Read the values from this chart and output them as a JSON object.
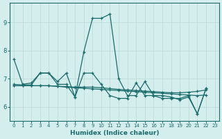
{
  "xlabel": "Humidex (Indice chaleur)",
  "bg_color": "#d4eeed",
  "line_color": "#1a6b6b",
  "grid_color": "#b8d8d6",
  "xlim": [
    -0.5,
    23.5
  ],
  "ylim": [
    5.5,
    9.7
  ],
  "yticks": [
    6,
    7,
    8,
    9
  ],
  "xticks": [
    0,
    1,
    2,
    3,
    4,
    5,
    6,
    7,
    8,
    9,
    10,
    11,
    12,
    13,
    14,
    15,
    16,
    17,
    18,
    19,
    20,
    21,
    22,
    23
  ],
  "series": [
    {
      "x": [
        0,
        1,
        2,
        3,
        4,
        5,
        6,
        7,
        8,
        9,
        10,
        11,
        12,
        13,
        14,
        15,
        16,
        17,
        18,
        19,
        20,
        21,
        22
      ],
      "y": [
        7.7,
        6.8,
        6.85,
        7.2,
        7.2,
        6.8,
        6.8,
        6.35,
        7.95,
        9.15,
        9.15,
        9.3,
        7.0,
        6.4,
        6.4,
        6.9,
        6.4,
        6.4,
        6.35,
        6.25,
        6.35,
        5.75,
        6.65
      ]
    },
    {
      "x": [
        0,
        1,
        2,
        3,
        4,
        5,
        6,
        7,
        8,
        9,
        10,
        11,
        12,
        13,
        14,
        15,
        16,
        17,
        18,
        19,
        20,
        21,
        22
      ],
      "y": [
        6.75,
        6.75,
        6.75,
        6.75,
        6.75,
        6.73,
        6.72,
        6.7,
        6.7,
        6.7,
        6.68,
        6.65,
        6.62,
        6.6,
        6.58,
        6.56,
        6.54,
        6.52,
        6.5,
        6.5,
        6.52,
        6.55,
        6.6
      ]
    },
    {
      "x": [
        0,
        1,
        2,
        3,
        4,
        5,
        6,
        7,
        8,
        9,
        10,
        11,
        12,
        13,
        14,
        15,
        16,
        17,
        18,
        19,
        20,
        21,
        22
      ],
      "y": [
        6.8,
        6.78,
        6.78,
        7.2,
        7.2,
        6.9,
        7.2,
        6.35,
        7.2,
        7.2,
        6.8,
        6.4,
        6.3,
        6.3,
        6.85,
        6.4,
        6.4,
        6.3,
        6.3,
        6.3,
        6.4,
        5.75,
        6.65
      ]
    },
    {
      "x": [
        0,
        1,
        2,
        3,
        4,
        5,
        6,
        7,
        8,
        9,
        10,
        11,
        12,
        13,
        14,
        15,
        16,
        17,
        18,
        19,
        20,
        21,
        22
      ],
      "y": [
        6.75,
        6.75,
        6.75,
        6.75,
        6.75,
        6.73,
        6.7,
        6.68,
        6.66,
        6.64,
        6.62,
        6.6,
        6.58,
        6.56,
        6.54,
        6.52,
        6.5,
        6.48,
        6.46,
        6.44,
        6.42,
        6.4,
        6.42
      ]
    }
  ]
}
